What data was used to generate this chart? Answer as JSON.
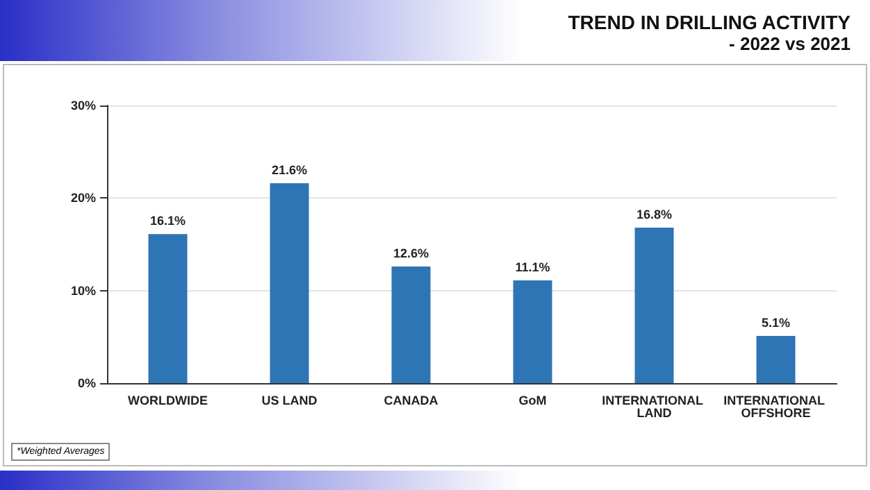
{
  "chart_data": {
    "type": "bar",
    "title": "TREND IN DRILLING ACTIVITY",
    "subtitle": "- 2022 vs 2021",
    "categories": [
      "WORLDWIDE",
      "US LAND",
      "CANADA",
      "GoM",
      "INTERNATIONAL LAND",
      "INTERNATIONAL OFFSHORE"
    ],
    "values": [
      16.1,
      21.6,
      12.6,
      11.1,
      16.8,
      5.1
    ],
    "value_labels": [
      "16.1%",
      "21.6%",
      "12.6%",
      "11.1%",
      "16.8%",
      "5.1%"
    ],
    "color": "#2e75b6",
    "ylim": [
      0,
      30
    ],
    "yticks": [
      {
        "value": 0,
        "label": "0%"
      },
      {
        "value": 10,
        "label": "10%"
      },
      {
        "value": 20,
        "label": "20%"
      },
      {
        "value": 30,
        "label": "30%"
      }
    ],
    "grid": "y",
    "annotations": [
      "*Weighted Averages"
    ]
  }
}
